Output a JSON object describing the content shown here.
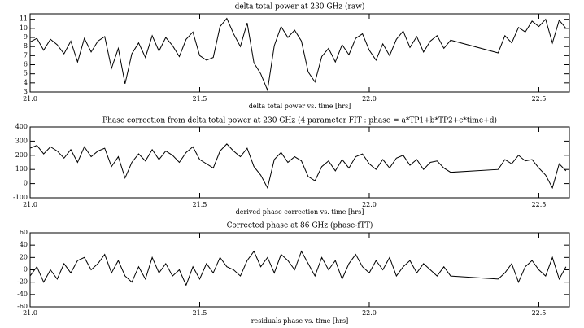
{
  "chart_data": [
    {
      "type": "line",
      "title": "delta total power at 230 GHz (raw)",
      "xlabel": "delta total power vs. time [hrs]",
      "color": "#000000",
      "xlim": [
        21.0,
        22.59
      ],
      "xticks": [
        {
          "value": 21.0,
          "label": "21.0"
        },
        21.5,
        {
          "value": 22.0,
          "label": "22.0"
        },
        22.5
      ],
      "ylim": [
        3,
        11.6
      ],
      "yticks": [
        3,
        4,
        5,
        6,
        7,
        8,
        9,
        10,
        11
      ],
      "x": [
        21,
        21.02,
        21.04,
        21.06,
        21.08,
        21.1,
        21.12,
        21.14,
        21.16,
        21.18,
        21.2,
        21.22,
        21.24,
        21.26,
        21.28,
        21.3,
        21.32,
        21.34,
        21.36,
        21.38,
        21.4,
        21.42,
        21.44,
        21.46,
        21.48,
        21.5,
        21.52,
        21.54,
        21.56,
        21.58,
        21.6,
        21.62,
        21.64,
        21.66,
        21.68,
        21.7,
        21.72,
        21.74,
        21.76,
        21.78,
        21.8,
        21.82,
        21.84,
        21.86,
        21.88,
        21.9,
        21.92,
        21.94,
        21.96,
        21.98,
        22,
        22.02,
        22.04,
        22.06,
        22.08,
        22.1,
        22.12,
        22.14,
        22.16,
        22.18,
        22.2,
        22.22,
        22.24,
        22.38,
        22.4,
        22.42,
        22.44,
        22.46,
        22.48,
        22.5,
        22.52,
        22.54,
        22.56,
        22.58
      ],
      "values": [
        8.5,
        8.9,
        7.6,
        8.8,
        8.2,
        7.2,
        8.6,
        6.3,
        8.9,
        7.4,
        8.6,
        9.1,
        5.6,
        7.8,
        3.9,
        7.2,
        8.4,
        6.8,
        9.2,
        7.5,
        9.0,
        8.1,
        6.9,
        8.8,
        9.6,
        7.0,
        6.5,
        6.8,
        10.2,
        11.1,
        9.4,
        8.0,
        10.6,
        6.2,
        5.0,
        3.2,
        8.1,
        10.2,
        9.0,
        9.8,
        8.6,
        5.2,
        4.1,
        6.9,
        7.8,
        6.3,
        8.2,
        7.1,
        8.9,
        9.4,
        7.6,
        6.5,
        8.3,
        7.0,
        8.8,
        9.7,
        7.9,
        9.1,
        7.4,
        8.6,
        9.2,
        7.8,
        8.7,
        7.3,
        9.2,
        8.4,
        10.1,
        9.6,
        10.8,
        10.2,
        11.0,
        8.4,
        10.9,
        10.0
      ]
    },
    {
      "type": "line",
      "title": "Phase correction from delta total power at 230 GHz (4 parameter FIT :  phase = a*TP1+b*TP2+c*time+d)",
      "xlabel": "derived phase correction vs. time [hrs]",
      "color": "#000000",
      "xlim": [
        21.0,
        22.59
      ],
      "xticks": [
        {
          "value": 21.0,
          "label": "21.0"
        },
        21.5,
        {
          "value": 22.0,
          "label": "22.0"
        },
        22.5
      ],
      "ylim": [
        -100,
        400
      ],
      "yticks": [
        -100,
        0,
        100,
        200,
        300,
        400
      ],
      "x": [
        21,
        21.02,
        21.04,
        21.06,
        21.08,
        21.1,
        21.12,
        21.14,
        21.16,
        21.18,
        21.2,
        21.22,
        21.24,
        21.26,
        21.28,
        21.3,
        21.32,
        21.34,
        21.36,
        21.38,
        21.4,
        21.42,
        21.44,
        21.46,
        21.48,
        21.5,
        21.52,
        21.54,
        21.56,
        21.58,
        21.6,
        21.62,
        21.64,
        21.66,
        21.68,
        21.7,
        21.72,
        21.74,
        21.76,
        21.78,
        21.8,
        21.82,
        21.84,
        21.86,
        21.88,
        21.9,
        21.92,
        21.94,
        21.96,
        21.98,
        22,
        22.02,
        22.04,
        22.06,
        22.08,
        22.1,
        22.12,
        22.14,
        22.16,
        22.18,
        22.2,
        22.22,
        22.24,
        22.38,
        22.4,
        22.42,
        22.44,
        22.46,
        22.48,
        22.5,
        22.52,
        22.54,
        22.56,
        22.58
      ],
      "values": [
        250,
        270,
        210,
        260,
        230,
        180,
        240,
        150,
        260,
        190,
        230,
        250,
        120,
        190,
        40,
        150,
        210,
        160,
        240,
        170,
        230,
        200,
        150,
        220,
        260,
        170,
        140,
        110,
        230,
        280,
        230,
        190,
        250,
        120,
        60,
        -30,
        170,
        220,
        150,
        190,
        160,
        50,
        20,
        120,
        160,
        90,
        170,
        110,
        190,
        210,
        140,
        100,
        170,
        110,
        180,
        200,
        130,
        170,
        100,
        150,
        160,
        110,
        80,
        100,
        170,
        140,
        200,
        160,
        170,
        110,
        60,
        -30,
        140,
        90
      ]
    },
    {
      "type": "line",
      "title": "Corrected phase at 86 GHz (phase-fTT)",
      "xlabel": "residuals phase vs. time [hrs]",
      "color": "#000000",
      "xlim": [
        21.0,
        22.59
      ],
      "xticks": [
        {
          "value": 21.0,
          "label": "21.0"
        },
        21.5,
        {
          "value": 22.0,
          "label": "22.0"
        },
        22.5
      ],
      "ylim": [
        -60,
        60
      ],
      "yticks": [
        -60,
        -40,
        -20,
        0,
        20,
        40,
        60
      ],
      "x": [
        21,
        21.02,
        21.04,
        21.06,
        21.08,
        21.1,
        21.12,
        21.14,
        21.16,
        21.18,
        21.2,
        21.22,
        21.24,
        21.26,
        21.28,
        21.3,
        21.32,
        21.34,
        21.36,
        21.38,
        21.4,
        21.42,
        21.44,
        21.46,
        21.48,
        21.5,
        21.52,
        21.54,
        21.56,
        21.58,
        21.6,
        21.62,
        21.64,
        21.66,
        21.68,
        21.7,
        21.72,
        21.74,
        21.76,
        21.78,
        21.8,
        21.82,
        21.84,
        21.86,
        21.88,
        21.9,
        21.92,
        21.94,
        21.96,
        21.98,
        22,
        22.02,
        22.04,
        22.06,
        22.08,
        22.1,
        22.12,
        22.14,
        22.16,
        22.18,
        22.2,
        22.22,
        22.24,
        22.38,
        22.4,
        22.42,
        22.44,
        22.46,
        22.48,
        22.5,
        22.52,
        22.54,
        22.56,
        22.58
      ],
      "values": [
        -10,
        5,
        -20,
        0,
        -15,
        10,
        -5,
        15,
        20,
        0,
        10,
        25,
        -5,
        15,
        -10,
        -20,
        5,
        -15,
        20,
        -5,
        10,
        -10,
        0,
        -25,
        5,
        -15,
        10,
        -5,
        20,
        5,
        0,
        -10,
        15,
        30,
        5,
        20,
        -5,
        25,
        15,
        0,
        30,
        10,
        -10,
        20,
        0,
        15,
        -15,
        10,
        25,
        5,
        -5,
        15,
        0,
        20,
        -10,
        5,
        15,
        -5,
        10,
        0,
        -10,
        5,
        -10,
        -15,
        -5,
        10,
        -20,
        5,
        15,
        0,
        -10,
        20,
        -15,
        5
      ]
    }
  ]
}
